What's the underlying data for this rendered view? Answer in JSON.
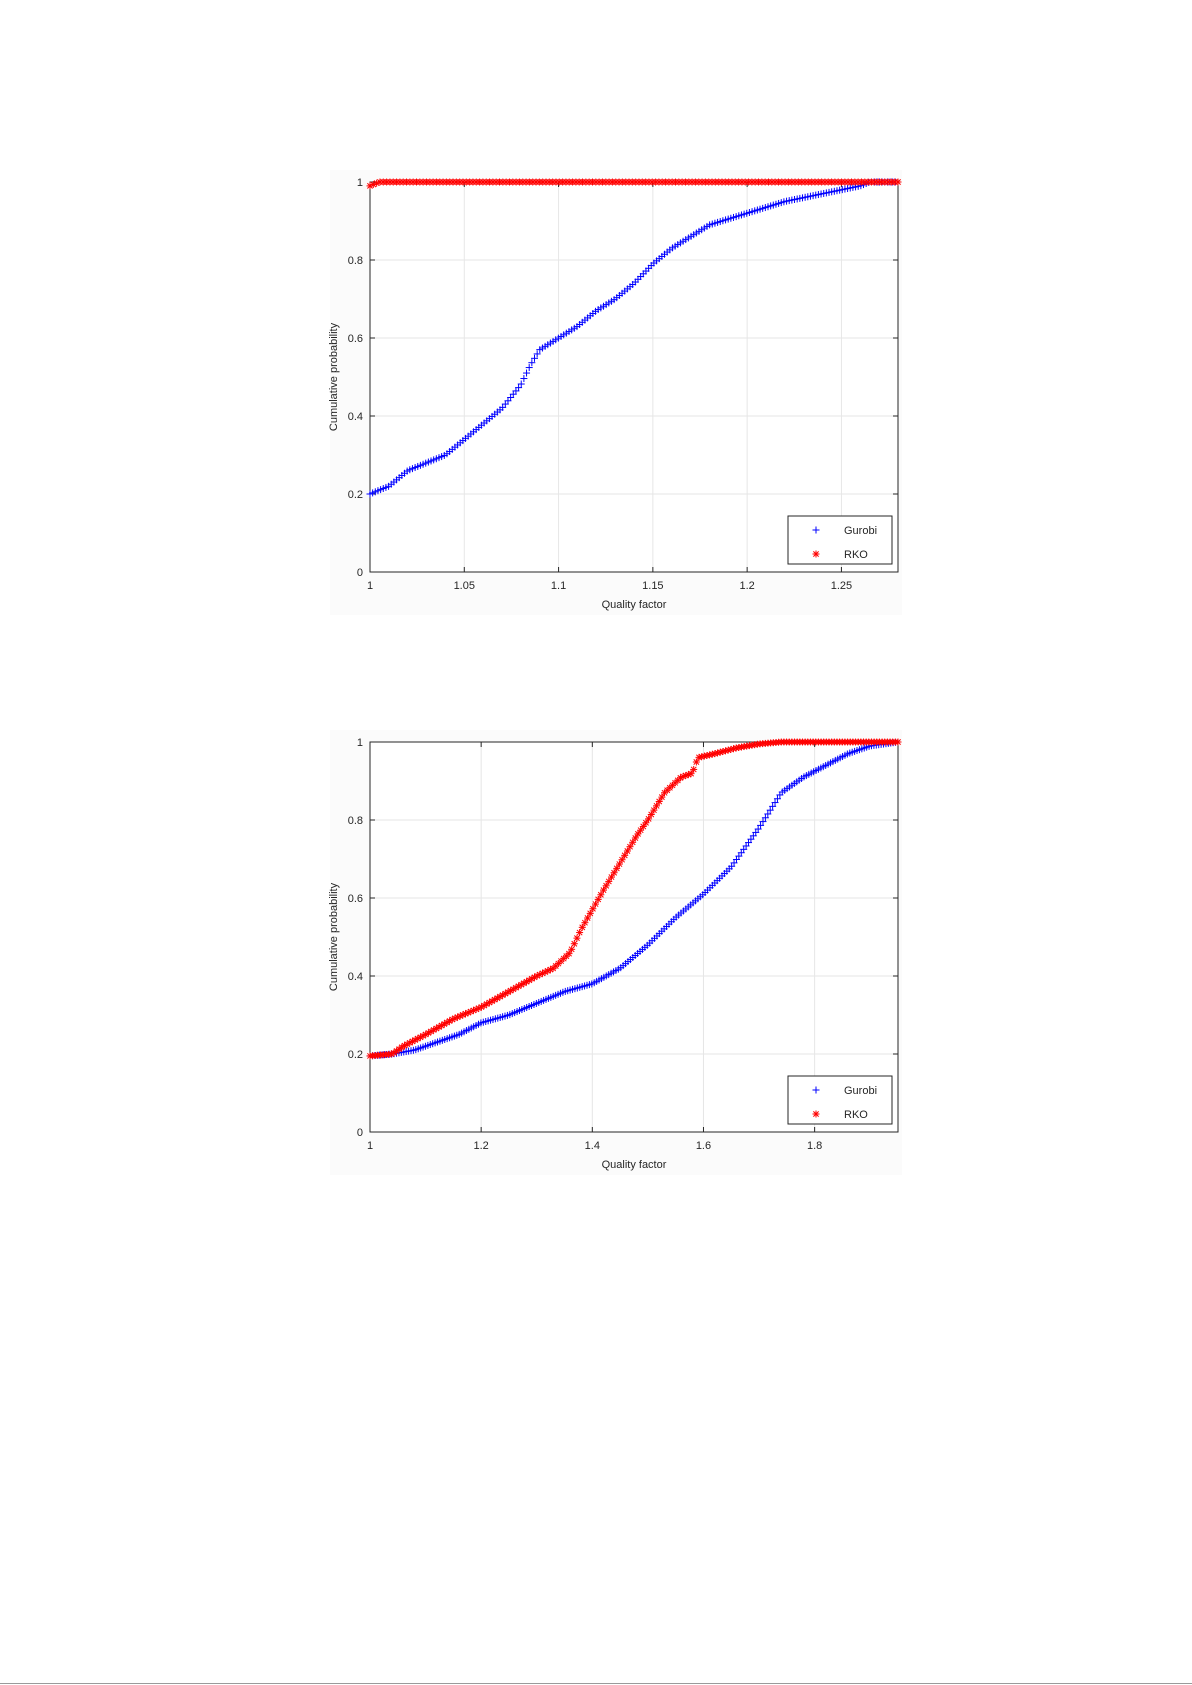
{
  "chart_data": [
    {
      "type": "scatter",
      "title": "",
      "xlabel": "Quality factor",
      "ylabel": "Cumulative probability",
      "xlim": [
        1,
        1.28
      ],
      "ylim": [
        0,
        1
      ],
      "xticks": [
        1,
        1.05,
        1.1,
        1.15,
        1.2,
        1.25
      ],
      "xtick_labels": [
        "1",
        "1.05",
        "1.1",
        "1.15",
        "1.2",
        "1.25"
      ],
      "yticks": [
        0,
        0.2,
        0.4,
        0.6,
        0.8,
        1
      ],
      "ytick_labels": [
        "0",
        "0.2",
        "0.4",
        "0.6",
        "0.8",
        "1"
      ],
      "grid": true,
      "legend_position": "bottom-right",
      "series": [
        {
          "name": "Gurobi",
          "color": "#0000ff",
          "marker": "plus",
          "curve": [
            [
              1.0,
              0.2
            ],
            [
              1.01,
              0.22
            ],
            [
              1.02,
              0.26
            ],
            [
              1.03,
              0.28
            ],
            [
              1.04,
              0.3
            ],
            [
              1.05,
              0.34
            ],
            [
              1.06,
              0.38
            ],
            [
              1.07,
              0.42
            ],
            [
              1.08,
              0.48
            ],
            [
              1.085,
              0.53
            ],
            [
              1.09,
              0.57
            ],
            [
              1.1,
              0.6
            ],
            [
              1.11,
              0.63
            ],
            [
              1.12,
              0.67
            ],
            [
              1.13,
              0.7
            ],
            [
              1.14,
              0.74
            ],
            [
              1.15,
              0.79
            ],
            [
              1.16,
              0.83
            ],
            [
              1.17,
              0.86
            ],
            [
              1.18,
              0.89
            ],
            [
              1.2,
              0.92
            ],
            [
              1.22,
              0.95
            ],
            [
              1.24,
              0.97
            ],
            [
              1.25,
              0.98
            ],
            [
              1.26,
              0.99
            ],
            [
              1.265,
              1.0
            ],
            [
              1.28,
              1.0
            ]
          ],
          "n_points": 200
        },
        {
          "name": "RKO",
          "color": "#ff0000",
          "marker": "asterisk",
          "curve": [
            [
              1.0,
              0.99
            ],
            [
              1.005,
              1.0
            ],
            [
              1.28,
              1.0
            ]
          ],
          "n_points": 160
        }
      ]
    },
    {
      "type": "scatter",
      "title": "",
      "xlabel": "Quality factor",
      "ylabel": "Cumulative probability",
      "xlim": [
        1,
        1.95
      ],
      "ylim": [
        0,
        1
      ],
      "xticks": [
        1,
        1.2,
        1.4,
        1.6,
        1.8
      ],
      "xtick_labels": [
        "1",
        "1.2",
        "1.4",
        "1.6",
        "1.8"
      ],
      "yticks": [
        0,
        0.2,
        0.4,
        0.6,
        0.8,
        1
      ],
      "ytick_labels": [
        "0",
        "0.2",
        "0.4",
        "0.6",
        "0.8",
        "1"
      ],
      "grid": true,
      "legend_position": "bottom-right",
      "series": [
        {
          "name": "Gurobi",
          "color": "#0000ff",
          "marker": "plus",
          "curve": [
            [
              1.0,
              0.195
            ],
            [
              1.04,
              0.2
            ],
            [
              1.08,
              0.21
            ],
            [
              1.12,
              0.23
            ],
            [
              1.16,
              0.25
            ],
            [
              1.2,
              0.28
            ],
            [
              1.25,
              0.3
            ],
            [
              1.3,
              0.33
            ],
            [
              1.35,
              0.36
            ],
            [
              1.4,
              0.38
            ],
            [
              1.45,
              0.42
            ],
            [
              1.5,
              0.48
            ],
            [
              1.55,
              0.55
            ],
            [
              1.6,
              0.61
            ],
            [
              1.65,
              0.68
            ],
            [
              1.7,
              0.78
            ],
            [
              1.74,
              0.87
            ],
            [
              1.78,
              0.91
            ],
            [
              1.82,
              0.94
            ],
            [
              1.86,
              0.97
            ],
            [
              1.9,
              0.99
            ],
            [
              1.95,
              1.0
            ]
          ],
          "n_points": 220
        },
        {
          "name": "RKO",
          "color": "#ff0000",
          "marker": "asterisk",
          "curve": [
            [
              1.0,
              0.195
            ],
            [
              1.04,
              0.2
            ],
            [
              1.06,
              0.22
            ],
            [
              1.1,
              0.25
            ],
            [
              1.15,
              0.29
            ],
            [
              1.2,
              0.32
            ],
            [
              1.25,
              0.36
            ],
            [
              1.3,
              0.4
            ],
            [
              1.33,
              0.42
            ],
            [
              1.36,
              0.46
            ],
            [
              1.38,
              0.52
            ],
            [
              1.4,
              0.57
            ],
            [
              1.42,
              0.62
            ],
            [
              1.45,
              0.69
            ],
            [
              1.48,
              0.76
            ],
            [
              1.5,
              0.8
            ],
            [
              1.53,
              0.87
            ],
            [
              1.56,
              0.91
            ],
            [
              1.58,
              0.92
            ],
            [
              1.59,
              0.96
            ],
            [
              1.62,
              0.97
            ],
            [
              1.66,
              0.985
            ],
            [
              1.7,
              0.995
            ],
            [
              1.74,
              1.0
            ],
            [
              1.95,
              1.0
            ]
          ],
          "n_points": 200
        }
      ]
    }
  ]
}
